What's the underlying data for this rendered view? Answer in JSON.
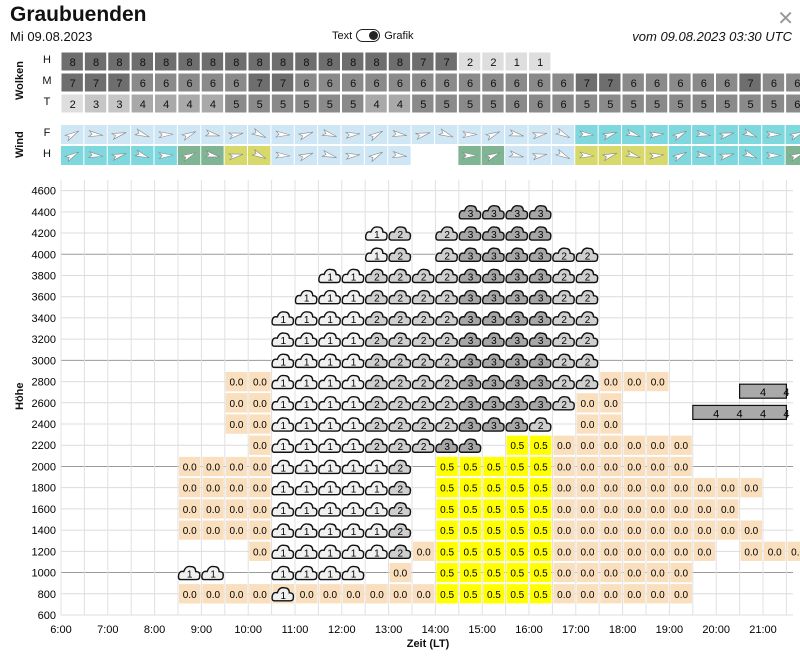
{
  "header": {
    "title": "Graubuenden",
    "date": "Mi 09.08.2023",
    "utc": "vom 09.08.2023 03:30 UTC",
    "close_icon": "close-icon",
    "toggle": {
      "left": "Text",
      "right": "Grafik"
    }
  },
  "clouds": {
    "label": "Wolken",
    "rows": [
      "H",
      "M",
      "T"
    ],
    "H": [
      "8",
      "8",
      "8",
      "8",
      "8",
      "8",
      "8",
      "8",
      "8",
      "8",
      "8",
      "8",
      "8",
      "8",
      "8",
      "7",
      "7",
      "2",
      "2",
      "1",
      "1",
      "",
      "",
      "",
      "",
      "",
      "",
      "",
      "",
      "",
      "",
      ""
    ],
    "M": [
      "7",
      "7",
      "7",
      "6",
      "6",
      "6",
      "6",
      "6",
      "7",
      "7",
      "6",
      "6",
      "6",
      "6",
      "6",
      "6",
      "6",
      "6",
      "6",
      "6",
      "6",
      "6",
      "7",
      "7",
      "6",
      "6",
      "6",
      "6",
      "6",
      "7",
      "6",
      "6"
    ],
    "T": [
      "2",
      "3",
      "3",
      "4",
      "4",
      "4",
      "4",
      "5",
      "5",
      "5",
      "5",
      "5",
      "5",
      "4",
      "4",
      "5",
      "5",
      "5",
      "5",
      "6",
      "6",
      "6",
      "5",
      "5",
      "5",
      "5",
      "5",
      "5",
      "5",
      "5",
      "5",
      "6"
    ]
  },
  "wind": {
    "label": "Wind",
    "rows": [
      "F",
      "H"
    ],
    "F": [
      "l",
      "l",
      "l",
      "l",
      "l",
      "l",
      "l",
      "l",
      "l",
      "l",
      "l",
      "l",
      "l",
      "l",
      "l",
      "l",
      "l",
      "l",
      "l",
      "l",
      "l",
      "l",
      "t",
      "t",
      "t",
      "t",
      "t",
      "t",
      "t",
      "t",
      "t",
      "t"
    ],
    "H": [
      "c",
      "c",
      "c",
      "c",
      "c",
      "g",
      "g",
      "y",
      "y",
      "l",
      "l",
      "l",
      "l",
      "l",
      "l",
      "w",
      "w",
      "g",
      "g",
      "l",
      "l",
      "l",
      "y",
      "y",
      "y",
      "y",
      "t",
      "t",
      "t",
      "t",
      "t",
      "g"
    ]
  },
  "chart_data": {
    "type": "heatmap",
    "ylabel": "Höhe",
    "xlabel": "Zeit (LT)",
    "yticks": [
      600,
      800,
      1000,
      1200,
      1400,
      1600,
      1800,
      2000,
      2200,
      2400,
      2600,
      2800,
      3000,
      3200,
      3400,
      3600,
      3800,
      4000,
      4200,
      4400,
      4600
    ],
    "xticks": [
      "6:00",
      "7:00",
      "8:00",
      "9:00",
      "10:00",
      "11:00",
      "12:00",
      "13:00",
      "14:00",
      "15:00",
      "16:00",
      "17:00",
      "18:00",
      "19:00",
      "20:00",
      "21:00"
    ],
    "cells": [
      {
        "a": 1000,
        "c": [
          0,
          0,
          0,
          0,
          0,
          0,
          0,
          0,
          0,
          0,
          0,
          0,
          0,
          0,
          0,
          0,
          0,
          0,
          0,
          0,
          0,
          0,
          0,
          0,
          0,
          0,
          0,
          0,
          0,
          0,
          0,
          0
        ]
      }
    ]
  },
  "legend_bars": [
    {
      "label": "4"
    },
    {
      "label": "4"
    },
    {
      "label": "4"
    },
    {
      "label": "4"
    }
  ],
  "colors": {
    "salmon": "#f9dfbd",
    "yellow": "#ffff00",
    "cloud_light": "#f0f0f0",
    "cloud_mid": "#cfcfcf",
    "cloud_dark": "#a7a7a7",
    "wind_light": "#cfe6f5",
    "wind_cyan": "#7fd8dd",
    "wind_green": "#7fb592",
    "wind_yellow": "#d7da6a"
  }
}
